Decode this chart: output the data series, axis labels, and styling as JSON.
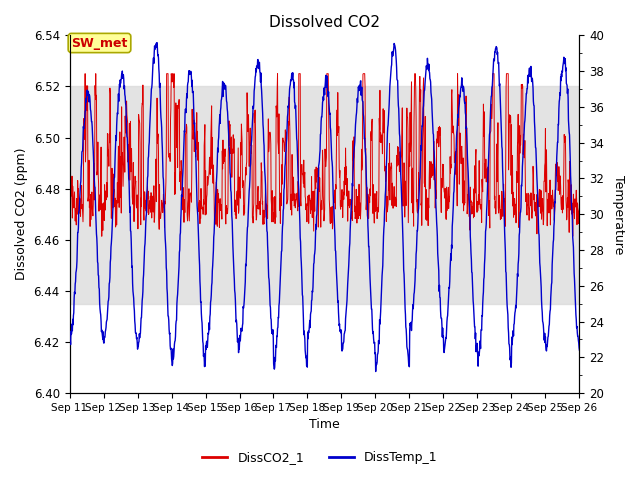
{
  "title": "Dissolved CO2",
  "xlabel": "Time",
  "ylabel_left": "Dissolved CO2 (ppm)",
  "ylabel_right": "Temperature",
  "ylim_left": [
    6.4,
    6.54
  ],
  "ylim_right": [
    20,
    40
  ],
  "yticks_left": [
    6.4,
    6.42,
    6.44,
    6.46,
    6.48,
    6.5,
    6.52,
    6.54
  ],
  "yticks_right": [
    20,
    22,
    24,
    26,
    28,
    30,
    32,
    34,
    36,
    38,
    40
  ],
  "xtick_labels": [
    "Sep 11",
    "Sep 12",
    "Sep 13",
    "Sep 14",
    "Sep 15",
    "Sep 16",
    "Sep 17",
    "Sep 18",
    "Sep 19",
    "Sep 20",
    "Sep 21",
    "Sep 22",
    "Sep 23",
    "Sep 24",
    "Sep 25",
    "Sep 26"
  ],
  "co2_color": "#dd0000",
  "temp_color": "#0000cc",
  "co2_label": "DissCO2_1",
  "temp_label": "DissTemp_1",
  "annotation_text": "SW_met",
  "annotation_bg": "#ffff99",
  "annotation_fg": "#cc0000",
  "shading_color": "#d8d8d8",
  "shading_alpha": 0.7,
  "shading_ylo": 6.435,
  "shading_yhi": 6.52,
  "background_color": "#ffffff",
  "plot_bg_color": "#ffffff"
}
